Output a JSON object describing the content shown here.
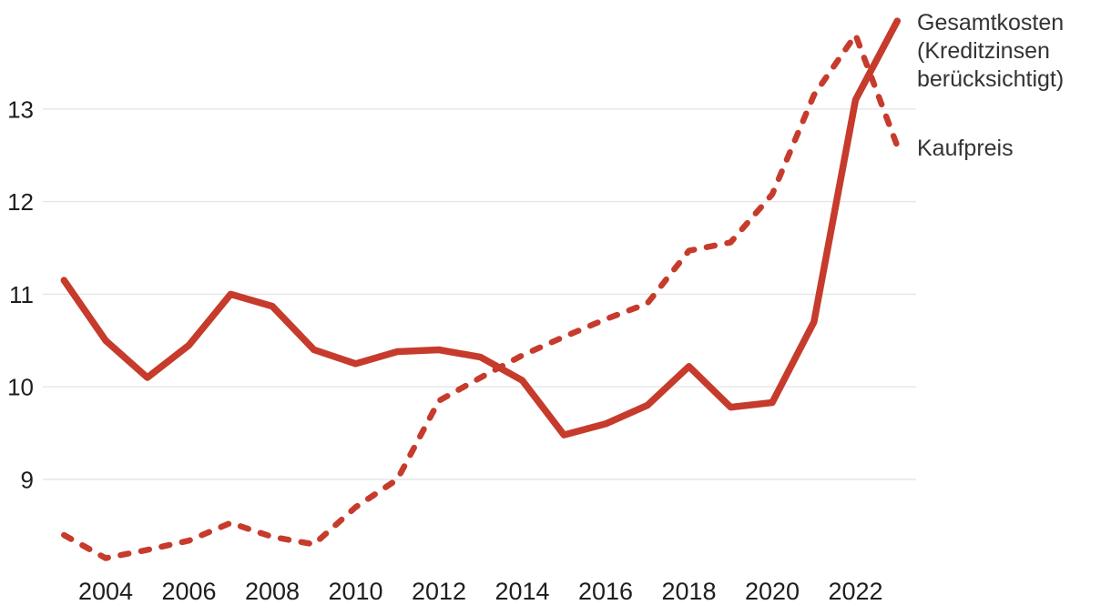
{
  "chart_data": {
    "type": "line",
    "title": "",
    "xlabel": "",
    "ylabel": "",
    "x": [
      2003,
      2004,
      2005,
      2006,
      2007,
      2008,
      2009,
      2010,
      2011,
      2012,
      2013,
      2014,
      2015,
      2016,
      2017,
      2018,
      2019,
      2020,
      2021,
      2022,
      2023
    ],
    "series": [
      {
        "name": "Gesamtkosten (Kreditzinsen berücksichtigt)",
        "style": "solid",
        "values": [
          11.15,
          10.5,
          10.1,
          10.45,
          11.0,
          10.87,
          10.4,
          10.25,
          10.38,
          10.4,
          10.32,
          10.07,
          9.48,
          9.6,
          9.8,
          10.22,
          9.78,
          9.83,
          10.7,
          13.1,
          13.95
        ]
      },
      {
        "name": "Kaufpreis",
        "style": "dashed",
        "values": [
          8.4,
          8.15,
          8.24,
          8.34,
          8.53,
          8.38,
          8.3,
          8.7,
          9.0,
          9.85,
          10.1,
          10.34,
          10.54,
          10.73,
          10.9,
          11.47,
          11.56,
          12.08,
          13.15,
          13.8,
          12.6
        ]
      }
    ],
    "xticks": [
      2004,
      2006,
      2008,
      2010,
      2012,
      2014,
      2016,
      2018,
      2020,
      2022
    ],
    "yticks": [
      9,
      10,
      11,
      12,
      13
    ],
    "xlim": [
      2003,
      2023
    ],
    "ylim": [
      8.0,
      14.1
    ],
    "grid": true,
    "legend_position": "right"
  },
  "colors": {
    "line": "#c63b2c",
    "grid": "#e6e6e6",
    "axis_text": "#1e1e1e",
    "legend_text": "#333333",
    "background": "#ffffff"
  }
}
